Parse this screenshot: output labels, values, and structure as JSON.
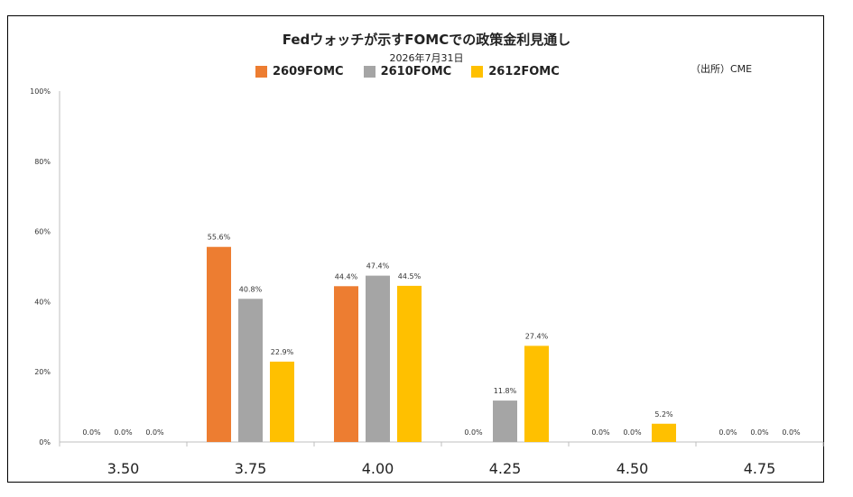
{
  "header": {
    "title": "Fedウォッチが示すFOMCでの政策金利見通し",
    "subtitle": "2026年7月31日",
    "source": "（出所）CME"
  },
  "chart_data": {
    "type": "bar",
    "categories": [
      "3.50",
      "3.75",
      "4.00",
      "4.25",
      "4.50",
      "4.75"
    ],
    "series": [
      {
        "name": "2609FOMC",
        "color": "#ED7D31",
        "values": [
          0.0,
          55.6,
          44.4,
          0.0,
          0.0,
          0.0
        ]
      },
      {
        "name": "2610FOMC",
        "color": "#A5A5A5",
        "values": [
          0.0,
          40.8,
          47.4,
          11.8,
          0.0,
          0.0
        ]
      },
      {
        "name": "2612FOMC",
        "color": "#FFC000",
        "values": [
          0.0,
          22.9,
          44.5,
          27.4,
          5.2,
          0.0
        ]
      }
    ],
    "ylim": [
      0,
      100
    ],
    "yticks": [
      "0%",
      "20%",
      "40%",
      "60%",
      "80%",
      "100%"
    ],
    "legend": "top",
    "grid": false
  }
}
